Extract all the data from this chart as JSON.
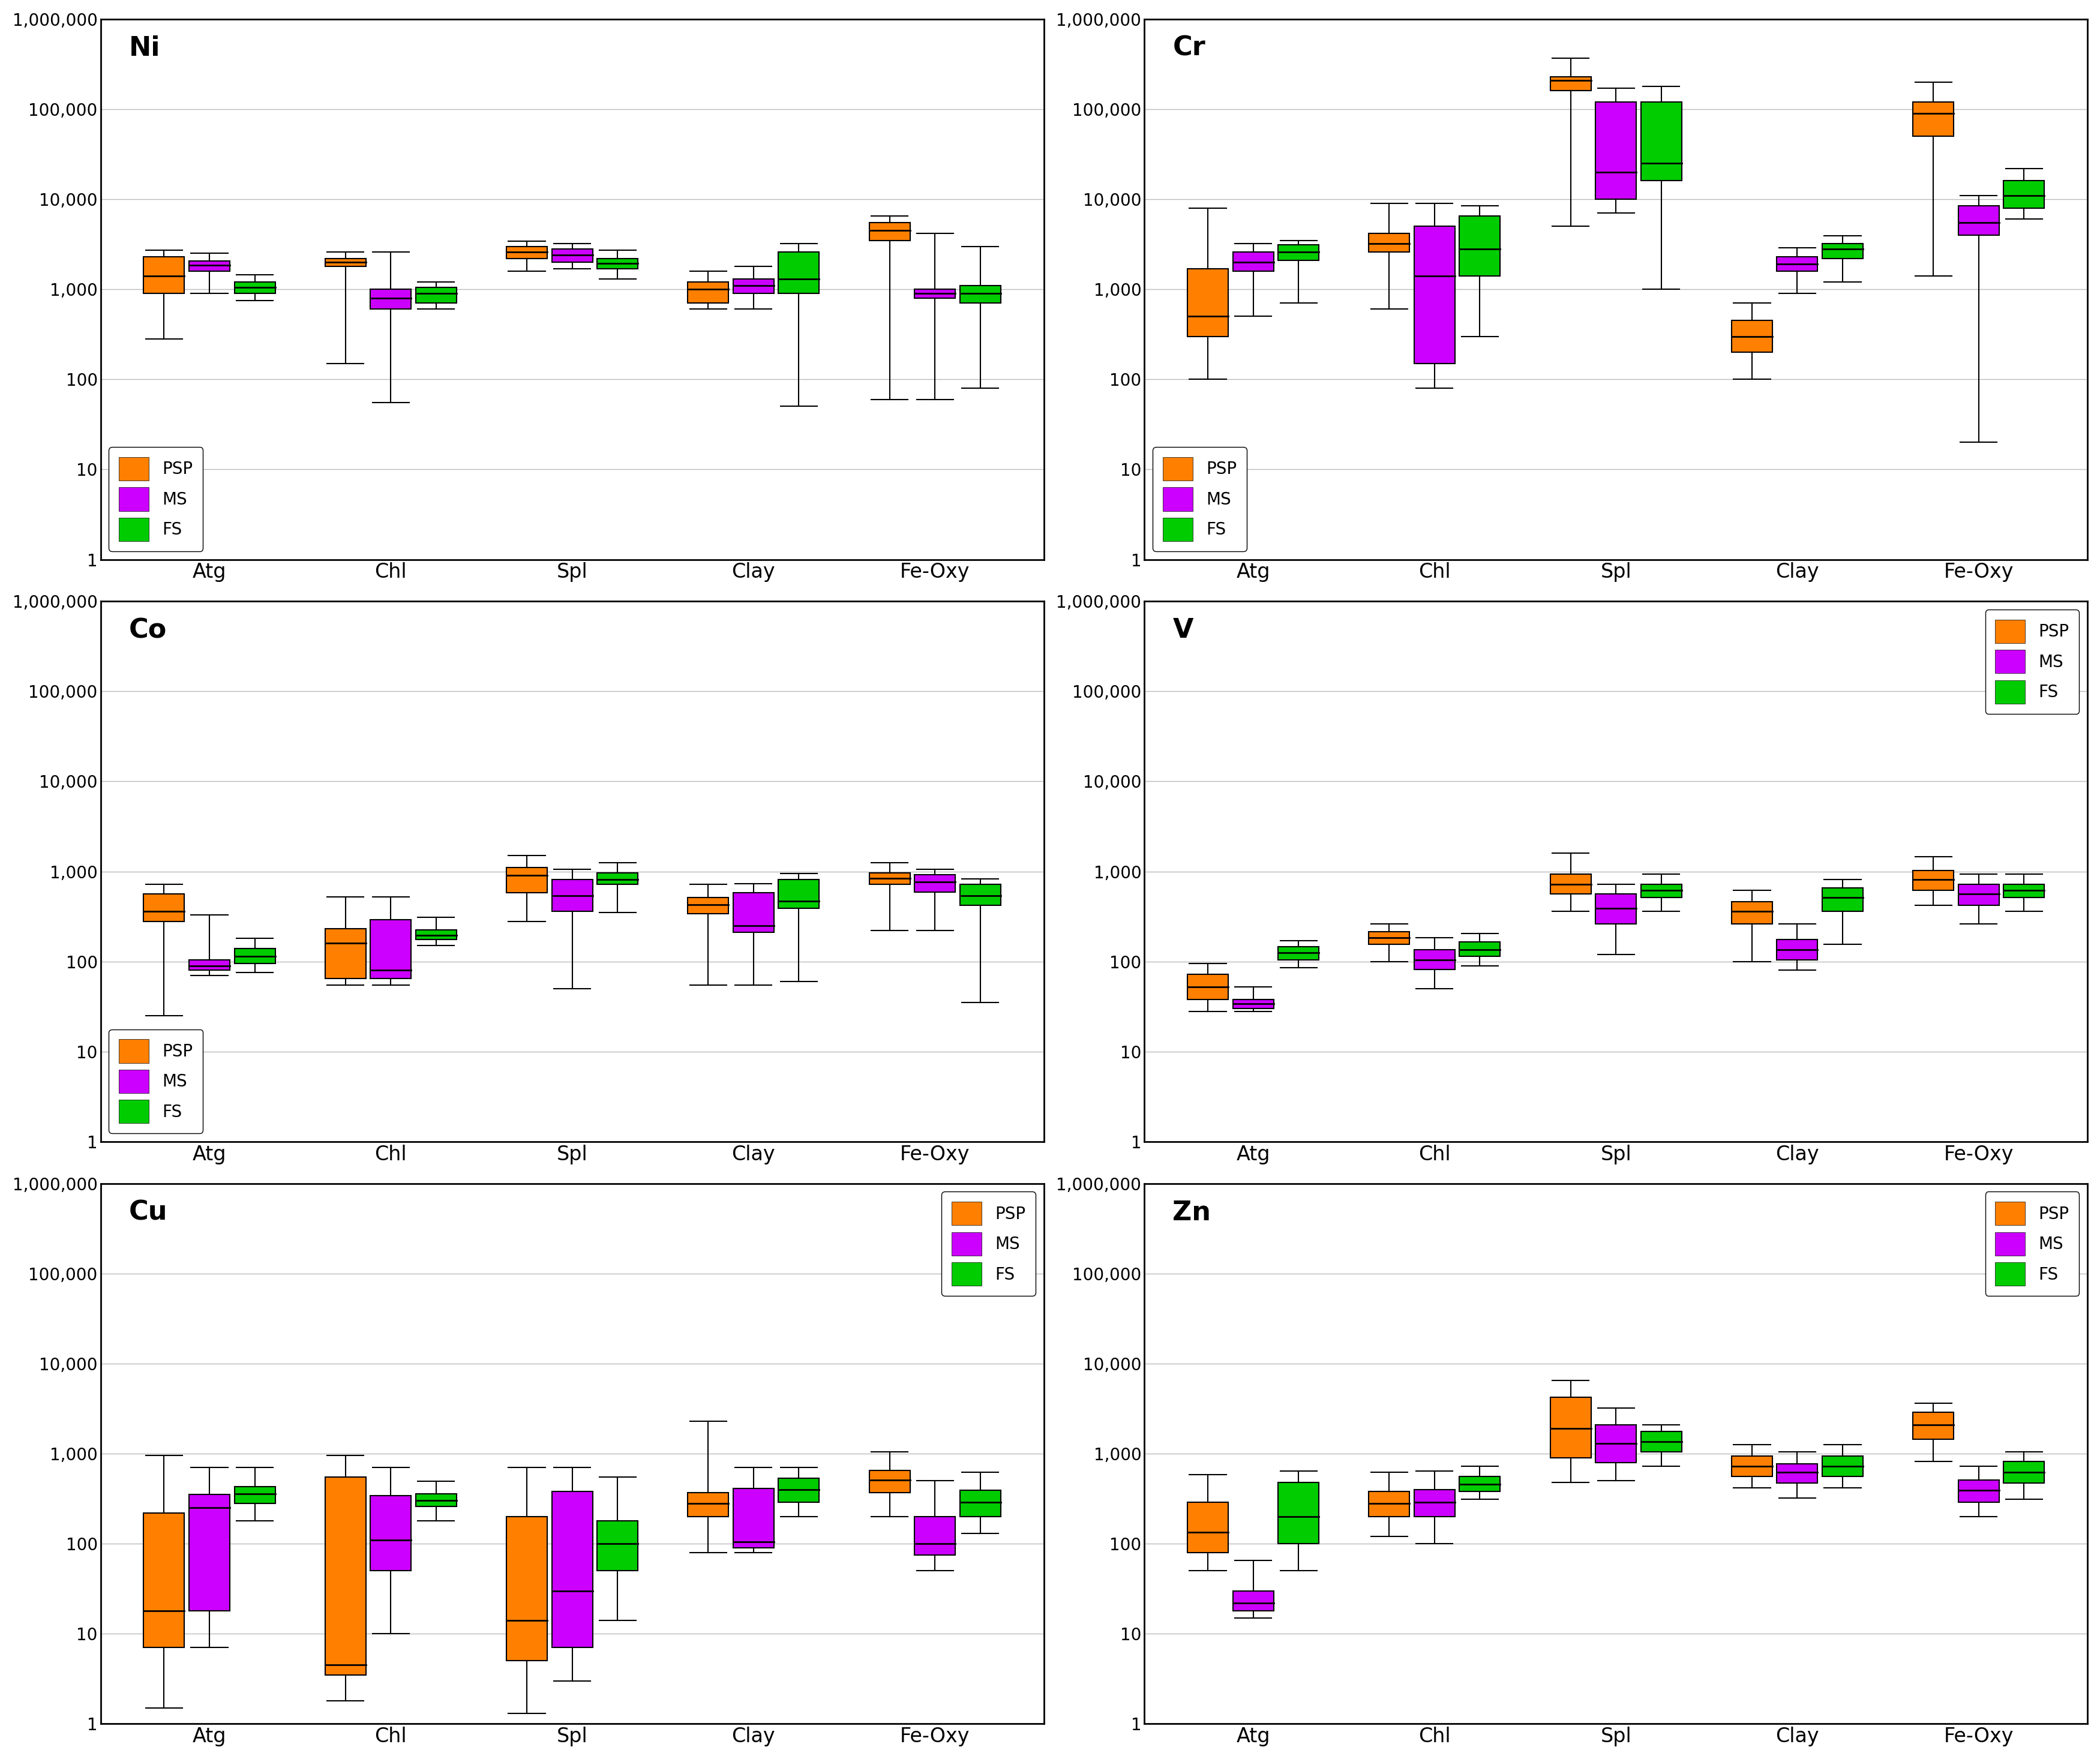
{
  "elements": [
    "Ni",
    "Cr",
    "Co",
    "V",
    "Cu",
    "Zn"
  ],
  "categories": [
    "Atg",
    "Chl",
    "Spl",
    "Clay",
    "Fe-Oxy"
  ],
  "colors": {
    "PSP": "#FF8000",
    "MS": "#CC00FF",
    "FS": "#00CC00"
  },
  "series": [
    "PSP",
    "MS",
    "FS"
  ],
  "layout": [
    [
      "Ni",
      "Cr"
    ],
    [
      "Co",
      "V"
    ],
    [
      "Cu",
      "Zn"
    ]
  ],
  "legend_pos": {
    "Ni": "lower left",
    "Cr": "lower left",
    "Co": "lower left",
    "V": "upper right",
    "Cu": "upper right",
    "Zn": "upper right"
  },
  "box_data": {
    "Ni": {
      "Atg": {
        "PSP": {
          "whislo": 280,
          "q1": 900,
          "med": 1400,
          "q3": 2300,
          "whishi": 2700
        },
        "MS": {
          "whislo": 900,
          "q1": 1600,
          "med": 1850,
          "q3": 2050,
          "whishi": 2500
        },
        "FS": {
          "whislo": 750,
          "q1": 900,
          "med": 1050,
          "q3": 1200,
          "whishi": 1450
        }
      },
      "Chl": {
        "PSP": {
          "whislo": 150,
          "q1": 1800,
          "med": 2000,
          "q3": 2200,
          "whishi": 2600
        },
        "MS": {
          "whislo": 55,
          "q1": 600,
          "med": 800,
          "q3": 1000,
          "whishi": 2600
        },
        "FS": {
          "whislo": 600,
          "q1": 700,
          "med": 900,
          "q3": 1050,
          "whishi": 1200
        }
      },
      "Spl": {
        "PSP": {
          "whislo": 1600,
          "q1": 2200,
          "med": 2600,
          "q3": 3000,
          "whishi": 3400
        },
        "MS": {
          "whislo": 1700,
          "q1": 2000,
          "med": 2400,
          "q3": 2800,
          "whishi": 3200
        },
        "FS": {
          "whislo": 1300,
          "q1": 1700,
          "med": 1950,
          "q3": 2200,
          "whishi": 2700
        }
      },
      "Clay": {
        "PSP": {
          "whislo": 600,
          "q1": 700,
          "med": 1000,
          "q3": 1200,
          "whishi": 1600
        },
        "MS": {
          "whislo": 600,
          "q1": 900,
          "med": 1100,
          "q3": 1300,
          "whishi": 1800
        },
        "FS": {
          "whislo": 50,
          "q1": 900,
          "med": 1300,
          "q3": 2600,
          "whishi": 3200
        }
      },
      "Fe-Oxy": {
        "PSP": {
          "whislo": 60,
          "q1": 3500,
          "med": 4500,
          "q3": 5500,
          "whishi": 6500
        },
        "MS": {
          "whislo": 60,
          "q1": 800,
          "med": 900,
          "q3": 1000,
          "whishi": 4200
        },
        "FS": {
          "whislo": 80,
          "q1": 700,
          "med": 900,
          "q3": 1100,
          "whishi": 3000
        }
      }
    },
    "Cr": {
      "Atg": {
        "PSP": {
          "whislo": 100,
          "q1": 300,
          "med": 500,
          "q3": 1700,
          "whishi": 8000
        },
        "MS": {
          "whislo": 500,
          "q1": 1600,
          "med": 2000,
          "q3": 2600,
          "whishi": 3200
        },
        "FS": {
          "whislo": 700,
          "q1": 2100,
          "med": 2600,
          "q3": 3100,
          "whishi": 3500
        }
      },
      "Chl": {
        "PSP": {
          "whislo": 600,
          "q1": 2600,
          "med": 3200,
          "q3": 4200,
          "whishi": 9000
        },
        "MS": {
          "whislo": 80,
          "q1": 150,
          "med": 1400,
          "q3": 5000,
          "whishi": 9000
        },
        "FS": {
          "whislo": 300,
          "q1": 1400,
          "med": 2800,
          "q3": 6500,
          "whishi": 8500
        }
      },
      "Spl": {
        "PSP": {
          "whislo": 5000,
          "q1": 160000,
          "med": 210000,
          "q3": 230000,
          "whishi": 370000
        },
        "MS": {
          "whislo": 7000,
          "q1": 10000,
          "med": 20000,
          "q3": 120000,
          "whishi": 170000
        },
        "FS": {
          "whislo": 1000,
          "q1": 16000,
          "med": 25000,
          "q3": 120000,
          "whishi": 180000
        }
      },
      "Clay": {
        "PSP": {
          "whislo": 100,
          "q1": 200,
          "med": 300,
          "q3": 450,
          "whishi": 700
        },
        "MS": {
          "whislo": 900,
          "q1": 1600,
          "med": 1900,
          "q3": 2300,
          "whishi": 2900
        },
        "FS": {
          "whislo": 1200,
          "q1": 2200,
          "med": 2800,
          "q3": 3200,
          "whishi": 3900
        }
      },
      "Fe-Oxy": {
        "PSP": {
          "whislo": 1400,
          "q1": 50000,
          "med": 90000,
          "q3": 120000,
          "whishi": 200000
        },
        "MS": {
          "whislo": 20,
          "q1": 4000,
          "med": 5500,
          "q3": 8500,
          "whishi": 11000
        },
        "FS": {
          "whislo": 6000,
          "q1": 8000,
          "med": 11000,
          "q3": 16000,
          "whishi": 22000
        }
      }
    },
    "Co": {
      "Atg": {
        "PSP": {
          "whislo": 25,
          "q1": 280,
          "med": 360,
          "q3": 560,
          "whishi": 720
        },
        "MS": {
          "whislo": 70,
          "q1": 80,
          "med": 90,
          "q3": 105,
          "whishi": 330
        },
        "FS": {
          "whislo": 75,
          "q1": 95,
          "med": 115,
          "q3": 140,
          "whishi": 180
        }
      },
      "Chl": {
        "PSP": {
          "whislo": 55,
          "q1": 65,
          "med": 160,
          "q3": 230,
          "whishi": 520
        },
        "MS": {
          "whislo": 55,
          "q1": 65,
          "med": 80,
          "q3": 290,
          "whishi": 520
        },
        "FS": {
          "whislo": 150,
          "q1": 175,
          "med": 195,
          "q3": 225,
          "whishi": 310
        }
      },
      "Spl": {
        "PSP": {
          "whislo": 280,
          "q1": 580,
          "med": 900,
          "q3": 1100,
          "whishi": 1500
        },
        "MS": {
          "whislo": 50,
          "q1": 360,
          "med": 540,
          "q3": 820,
          "whishi": 1050
        },
        "FS": {
          "whislo": 350,
          "q1": 720,
          "med": 820,
          "q3": 970,
          "whishi": 1250
        }
      },
      "Clay": {
        "PSP": {
          "whislo": 55,
          "q1": 340,
          "med": 430,
          "q3": 510,
          "whishi": 720
        },
        "MS": {
          "whislo": 55,
          "q1": 210,
          "med": 250,
          "q3": 580,
          "whishi": 730
        },
        "FS": {
          "whislo": 60,
          "q1": 390,
          "med": 470,
          "q3": 820,
          "whishi": 950
        }
      },
      "Fe-Oxy": {
        "PSP": {
          "whislo": 220,
          "q1": 720,
          "med": 840,
          "q3": 970,
          "whishi": 1250
        },
        "MS": {
          "whislo": 220,
          "q1": 590,
          "med": 760,
          "q3": 920,
          "whishi": 1050
        },
        "FS": {
          "whislo": 35,
          "q1": 420,
          "med": 540,
          "q3": 720,
          "whishi": 830
        }
      }
    },
    "V": {
      "Atg": {
        "PSP": {
          "whislo": 28,
          "q1": 38,
          "med": 52,
          "q3": 72,
          "whishi": 95
        },
        "MS": {
          "whislo": 28,
          "q1": 30,
          "med": 34,
          "q3": 38,
          "whishi": 52
        },
        "FS": {
          "whislo": 85,
          "q1": 105,
          "med": 125,
          "q3": 145,
          "whishi": 170
        }
      },
      "Chl": {
        "PSP": {
          "whislo": 100,
          "q1": 155,
          "med": 185,
          "q3": 215,
          "whishi": 260
        },
        "MS": {
          "whislo": 50,
          "q1": 82,
          "med": 105,
          "q3": 135,
          "whishi": 185
        },
        "FS": {
          "whislo": 90,
          "q1": 115,
          "med": 135,
          "q3": 165,
          "whishi": 205
        }
      },
      "Spl": {
        "PSP": {
          "whislo": 360,
          "q1": 560,
          "med": 720,
          "q3": 930,
          "whishi": 1600
        },
        "MS": {
          "whislo": 120,
          "q1": 260,
          "med": 390,
          "q3": 560,
          "whishi": 720
        },
        "FS": {
          "whislo": 360,
          "q1": 510,
          "med": 620,
          "q3": 720,
          "whishi": 930
        }
      },
      "Clay": {
        "PSP": {
          "whislo": 100,
          "q1": 260,
          "med": 360,
          "q3": 460,
          "whishi": 620
        },
        "MS": {
          "whislo": 80,
          "q1": 105,
          "med": 135,
          "q3": 175,
          "whishi": 260
        },
        "FS": {
          "whislo": 155,
          "q1": 360,
          "med": 510,
          "q3": 660,
          "whishi": 820
        }
      },
      "Fe-Oxy": {
        "PSP": {
          "whislo": 420,
          "q1": 620,
          "med": 820,
          "q3": 1020,
          "whishi": 1450
        },
        "MS": {
          "whislo": 260,
          "q1": 420,
          "med": 560,
          "q3": 720,
          "whishi": 930
        },
        "FS": {
          "whislo": 360,
          "q1": 510,
          "med": 620,
          "q3": 720,
          "whishi": 930
        }
      }
    },
    "Cu": {
      "Atg": {
        "PSP": {
          "whislo": 1.5,
          "q1": 7,
          "med": 18,
          "q3": 220,
          "whishi": 950
        },
        "MS": {
          "whislo": 7,
          "q1": 18,
          "med": 250,
          "q3": 350,
          "whishi": 700
        },
        "FS": {
          "whislo": 180,
          "q1": 280,
          "med": 360,
          "q3": 430,
          "whishi": 700
        }
      },
      "Chl": {
        "PSP": {
          "whislo": 1.8,
          "q1": 3.5,
          "med": 4.5,
          "q3": 550,
          "whishi": 950
        },
        "MS": {
          "whislo": 10,
          "q1": 50,
          "med": 110,
          "q3": 340,
          "whishi": 700
        },
        "FS": {
          "whislo": 180,
          "q1": 260,
          "med": 300,
          "q3": 360,
          "whishi": 490
        }
      },
      "Spl": {
        "PSP": {
          "whislo": 1.3,
          "q1": 5,
          "med": 14,
          "q3": 200,
          "whishi": 700
        },
        "MS": {
          "whislo": 3,
          "q1": 7,
          "med": 30,
          "q3": 380,
          "whishi": 700
        },
        "FS": {
          "whislo": 14,
          "q1": 50,
          "med": 100,
          "q3": 180,
          "whishi": 550
        }
      },
      "Clay": {
        "PSP": {
          "whislo": 80,
          "q1": 200,
          "med": 280,
          "q3": 370,
          "whishi": 2300
        },
        "MS": {
          "whislo": 80,
          "q1": 90,
          "med": 105,
          "q3": 410,
          "whishi": 700
        },
        "FS": {
          "whislo": 200,
          "q1": 290,
          "med": 400,
          "q3": 530,
          "whishi": 700
        }
      },
      "Fe-Oxy": {
        "PSP": {
          "whislo": 200,
          "q1": 370,
          "med": 510,
          "q3": 650,
          "whishi": 1050
        },
        "MS": {
          "whislo": 50,
          "q1": 75,
          "med": 100,
          "q3": 200,
          "whishi": 500
        },
        "FS": {
          "whislo": 130,
          "q1": 200,
          "med": 290,
          "q3": 390,
          "whishi": 620
        }
      }
    },
    "Zn": {
      "Atg": {
        "PSP": {
          "whislo": 50,
          "q1": 80,
          "med": 135,
          "q3": 290,
          "whishi": 580
        },
        "MS": {
          "whislo": 15,
          "q1": 18,
          "med": 22,
          "q3": 30,
          "whishi": 65
        },
        "FS": {
          "whislo": 50,
          "q1": 100,
          "med": 200,
          "q3": 480,
          "whishi": 640
        }
      },
      "Chl": {
        "PSP": {
          "whislo": 120,
          "q1": 200,
          "med": 280,
          "q3": 380,
          "whishi": 620
        },
        "MS": {
          "whislo": 100,
          "q1": 200,
          "med": 290,
          "q3": 400,
          "whishi": 640
        },
        "FS": {
          "whislo": 310,
          "q1": 380,
          "med": 460,
          "q3": 560,
          "whishi": 720
        }
      },
      "Spl": {
        "PSP": {
          "whislo": 480,
          "q1": 900,
          "med": 1900,
          "q3": 4200,
          "whishi": 6500
        },
        "MS": {
          "whislo": 500,
          "q1": 800,
          "med": 1300,
          "q3": 2100,
          "whishi": 3200
        },
        "FS": {
          "whislo": 720,
          "q1": 1050,
          "med": 1350,
          "q3": 1750,
          "whishi": 2100
        }
      },
      "Clay": {
        "PSP": {
          "whislo": 420,
          "q1": 560,
          "med": 720,
          "q3": 940,
          "whishi": 1250
        },
        "MS": {
          "whislo": 320,
          "q1": 470,
          "med": 620,
          "q3": 770,
          "whishi": 1050
        },
        "FS": {
          "whislo": 420,
          "q1": 560,
          "med": 720,
          "q3": 940,
          "whishi": 1250
        }
      },
      "Fe-Oxy": {
        "PSP": {
          "whislo": 820,
          "q1": 1450,
          "med": 2100,
          "q3": 2900,
          "whishi": 3600
        },
        "MS": {
          "whislo": 200,
          "q1": 290,
          "med": 390,
          "q3": 510,
          "whishi": 720
        },
        "FS": {
          "whislo": 310,
          "q1": 470,
          "med": 620,
          "q3": 820,
          "whishi": 1050
        }
      }
    }
  }
}
